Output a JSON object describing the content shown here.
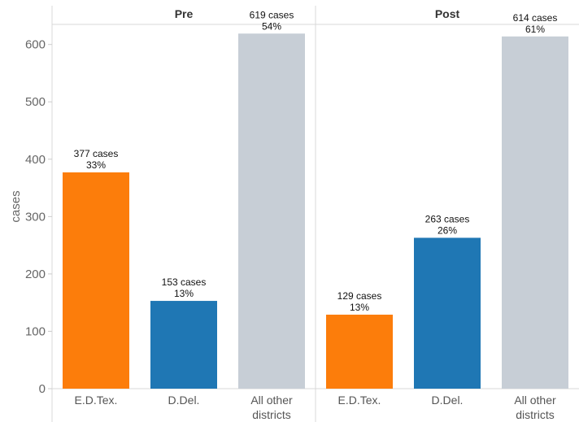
{
  "chart_data": {
    "type": "bar",
    "ylabel": "cases",
    "ylim": [
      0,
      650
    ],
    "yticks": [
      0,
      100,
      200,
      300,
      400,
      500,
      600
    ],
    "grid": false,
    "colors": {
      "E.D.Tex.": "#fc7d0b",
      "D.Del.": "#1f77b4",
      "All other districts": "#c7ced6"
    },
    "categories": [
      "E.D.Tex.",
      "D.Del.",
      "All other districts"
    ],
    "panels": [
      {
        "title": "Pre",
        "bars": [
          {
            "category": "E.D.Tex.",
            "category_lines": [
              "E.D.Tex."
            ],
            "value": 377,
            "percent": "33%",
            "cases_label": "377 cases"
          },
          {
            "category": "D.Del.",
            "category_lines": [
              "D.Del."
            ],
            "value": 153,
            "percent": "13%",
            "cases_label": "153 cases"
          },
          {
            "category": "All other districts",
            "category_lines": [
              "All other",
              "districts"
            ],
            "value": 619,
            "percent": "54%",
            "cases_label": "619 cases"
          }
        ]
      },
      {
        "title": "Post",
        "bars": [
          {
            "category": "E.D.Tex.",
            "category_lines": [
              "E.D.Tex."
            ],
            "value": 129,
            "percent": "13%",
            "cases_label": "129 cases"
          },
          {
            "category": "D.Del.",
            "category_lines": [
              "D.Del."
            ],
            "value": 263,
            "percent": "26%",
            "cases_label": "263 cases"
          },
          {
            "category": "All other districts",
            "category_lines": [
              "All other",
              "districts"
            ],
            "value": 614,
            "percent": "61%",
            "cases_label": "614 cases"
          }
        ]
      }
    ]
  }
}
